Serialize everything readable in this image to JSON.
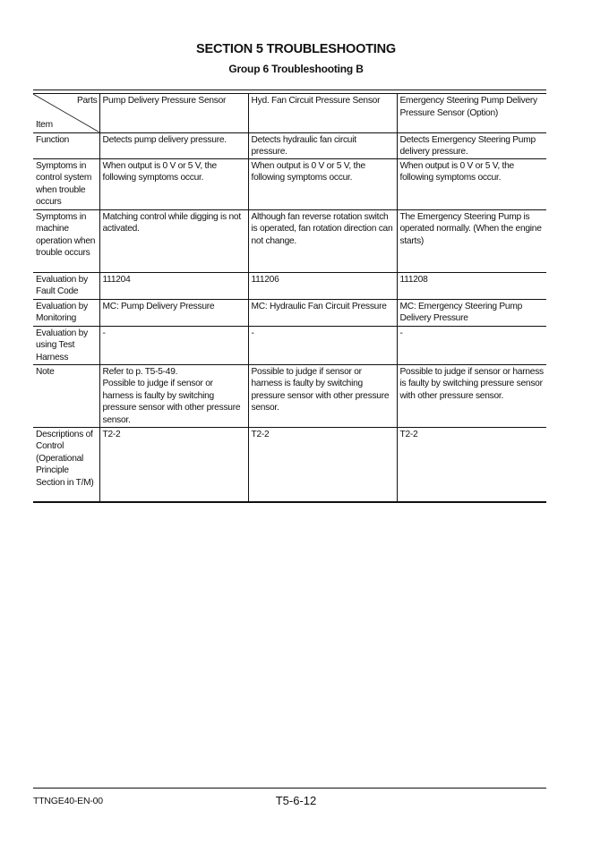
{
  "header": {
    "title": "SECTION 5 TROUBLESHOOTING",
    "subtitle": "Group 6 Troubleshooting B"
  },
  "table": {
    "corner": {
      "parts": "Parts",
      "item": "Item"
    },
    "columns": [
      "Pump Delivery Pressure Sensor",
      "Hyd. Fan Circuit Pressure Sensor",
      "Emergency Steering Pump Delivery Pressure Sensor (Option)"
    ],
    "rows": [
      {
        "label": "Function",
        "cells": [
          "Detects pump delivery pressure.",
          "Detects hydraulic fan circuit pressure.",
          "Detects Emergency Steering Pump delivery pressure."
        ]
      },
      {
        "label": "Symptoms in control system when trouble occurs",
        "cells": [
          "When output is 0 V or 5 V, the following symptoms occur.",
          "When output is 0 V or 5 V, the following symptoms occur.",
          "When output is 0 V or 5 V, the following symptoms occur."
        ]
      },
      {
        "label": "Symptoms in machine operation when trouble occurs",
        "cells": [
          "Matching control while digging is not activated.",
          "Although fan reverse rotation switch is operated, fan rotation direction can not change.",
          "The Emergency Steering Pump is operated normally. (When the engine starts)"
        ]
      },
      {
        "label": "Evaluation by Fault Code",
        "cells": [
          "111204",
          "111206",
          "111208"
        ]
      },
      {
        "label": "Evaluation by Monitoring",
        "cells": [
          "MC: Pump Delivery Pressure",
          "MC: Hydraulic Fan Circuit Pressure",
          "MC: Emergency Steering Pump Delivery Pressure"
        ]
      },
      {
        "label": "Evaluation by using Test Harness",
        "cells": [
          "-",
          "-",
          "-"
        ]
      },
      {
        "label": "Note",
        "cells": [
          "Refer to p. T5-5-49.\nPossible to judge if sensor or harness is faulty by switching pressure sensor with other pressure sensor.",
          "Possible to judge if sensor or harness is faulty by switching pressure sensor with other pressure sensor.",
          "Possible to judge if sensor or harness is faulty by switching pressure sensor with other pressure sensor."
        ]
      },
      {
        "label": "Descriptions of Control (Operational Principle Section in T/M)",
        "cells": [
          "T2-2",
          "T2-2",
          "T2-2"
        ]
      }
    ]
  },
  "footer": {
    "doc_code": "TTNGE40-EN-00",
    "page": "T5-6-12"
  }
}
